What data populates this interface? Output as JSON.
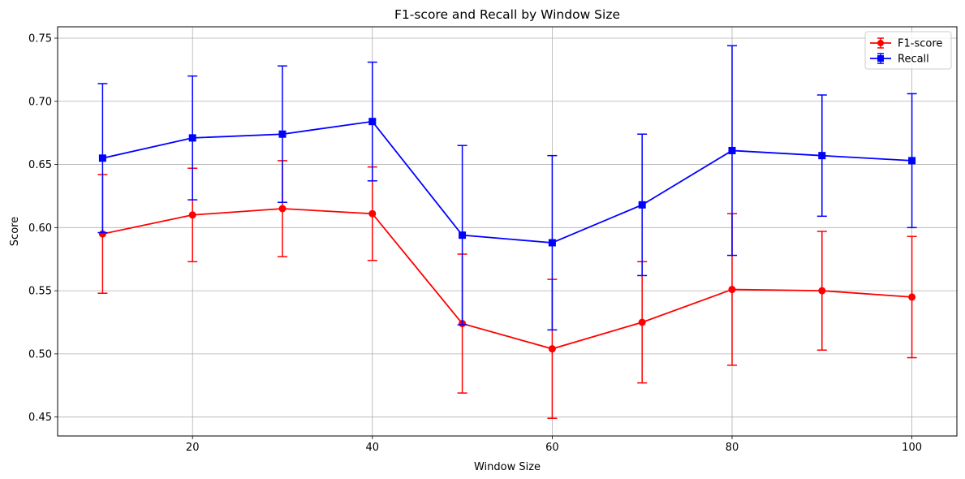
{
  "chart_data": {
    "type": "line",
    "title": "F1-score and Recall by Window Size",
    "xlabel": "Window Size",
    "ylabel": "Score",
    "xlim": [
      5,
      105
    ],
    "ylim": [
      0.435,
      0.759
    ],
    "xticks": [
      20,
      40,
      60,
      80,
      100
    ],
    "yticks": [
      0.45,
      0.5,
      0.55,
      0.6,
      0.65,
      0.7,
      0.75
    ],
    "ytick_labels": [
      "0.45",
      "0.50",
      "0.55",
      "0.60",
      "0.65",
      "0.70",
      "0.75"
    ],
    "grid": true,
    "legend_position": "top-right",
    "x": [
      10,
      20,
      30,
      40,
      50,
      60,
      70,
      80,
      90,
      100
    ],
    "series": [
      {
        "name": "F1-score",
        "color": "#ff0000",
        "marker": "circle",
        "values": [
          0.595,
          0.61,
          0.615,
          0.611,
          0.524,
          0.504,
          0.525,
          0.551,
          0.55,
          0.545
        ],
        "errors": [
          0.047,
          0.037,
          0.038,
          0.037,
          0.055,
          0.055,
          0.048,
          0.06,
          0.047,
          0.048
        ]
      },
      {
        "name": "Recall",
        "color": "#0000ff",
        "marker": "square",
        "values": [
          0.655,
          0.671,
          0.674,
          0.684,
          0.594,
          0.588,
          0.618,
          0.661,
          0.657,
          0.653
        ],
        "errors": [
          0.059,
          0.049,
          0.054,
          0.047,
          0.071,
          0.069,
          0.056,
          0.083,
          0.048,
          0.053
        ]
      }
    ]
  }
}
